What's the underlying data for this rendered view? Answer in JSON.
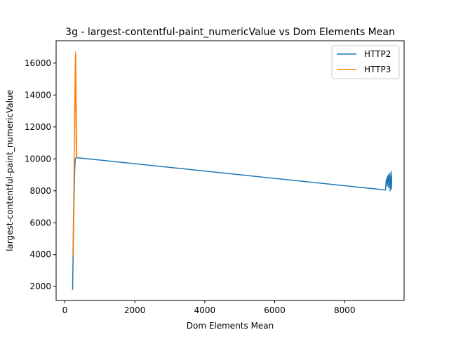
{
  "chart_data": {
    "type": "line",
    "title": "3g - largest-contentful-paint_numericValue vs Dom Elements Mean",
    "xlabel": "Dom Elements Mean",
    "ylabel": "largest-contentful-paint_numericValue",
    "xlim": [
      -250,
      9700
    ],
    "ylim": [
      1130,
      17400
    ],
    "xticks": [
      0,
      2000,
      4000,
      6000,
      8000
    ],
    "yticks": [
      2000,
      4000,
      6000,
      8000,
      10000,
      12000,
      14000,
      16000
    ],
    "grid": false,
    "legend_position": "top-right",
    "series": [
      {
        "name": "HTTP2",
        "color": "#1f77b4",
        "points": [
          [
            220,
            1800
          ],
          [
            235,
            3800
          ],
          [
            245,
            5200
          ],
          [
            255,
            6500
          ],
          [
            265,
            7800
          ],
          [
            275,
            8800
          ],
          [
            285,
            9500
          ],
          [
            295,
            9900
          ],
          [
            310,
            10050
          ],
          [
            330,
            10080
          ],
          [
            9170,
            8050
          ],
          [
            9180,
            8400
          ],
          [
            9190,
            8700
          ],
          [
            9200,
            8500
          ],
          [
            9210,
            8800
          ],
          [
            9220,
            8300
          ],
          [
            9230,
            8900
          ],
          [
            9240,
            8600
          ],
          [
            9250,
            9000
          ],
          [
            9260,
            8200
          ],
          [
            9270,
            8900
          ],
          [
            9280,
            8400
          ],
          [
            9290,
            9100
          ],
          [
            9300,
            8000
          ],
          [
            9310,
            8800
          ],
          [
            9320,
            8300
          ],
          [
            9330,
            9200
          ],
          [
            9335,
            8700
          ],
          [
            9340,
            8100
          ],
          [
            9345,
            8950
          ]
        ]
      },
      {
        "name": "HTTP3",
        "color": "#ff7f0e",
        "points": [
          [
            230,
            3900
          ],
          [
            240,
            5500
          ],
          [
            250,
            7000
          ],
          [
            260,
            8500
          ],
          [
            270,
            10200
          ],
          [
            280,
            12500
          ],
          [
            290,
            14500
          ],
          [
            300,
            16500
          ],
          [
            305,
            15800
          ],
          [
            310,
            16700
          ],
          [
            312,
            13000
          ],
          [
            315,
            15500
          ],
          [
            318,
            12000
          ],
          [
            320,
            14800
          ],
          [
            322,
            11000
          ],
          [
            325,
            13500
          ],
          [
            328,
            10200
          ],
          [
            330,
            12200
          ],
          [
            333,
            10600
          ],
          [
            335,
            11500
          ],
          [
            338,
            10100
          ],
          [
            340,
            10400
          ]
        ]
      }
    ]
  }
}
